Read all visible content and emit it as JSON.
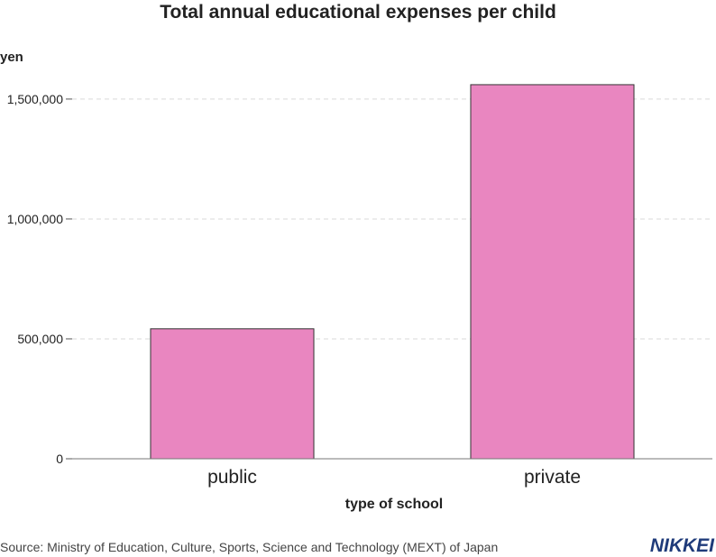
{
  "chart_data": {
    "type": "bar",
    "title": "Total annual educational expenses per child",
    "ylabel": "yen",
    "xlabel": "type of school",
    "categories": [
      "public",
      "private"
    ],
    "values": [
      542000,
      1560000
    ],
    "ylim": [
      0,
      1650000
    ],
    "yticks": [
      0,
      500000,
      1000000,
      1500000
    ],
    "ytick_labels": [
      "0",
      "500,000",
      "1,000,000",
      "1,500,000"
    ],
    "grid": "horizontal-dashed",
    "bar_color": "#e986c0",
    "bar_edge_color": "#333333"
  },
  "source": "Source: Ministry of Education, Culture, Sports, Science and Technology (MEXT) of Japan",
  "logo": "NIKKEI"
}
